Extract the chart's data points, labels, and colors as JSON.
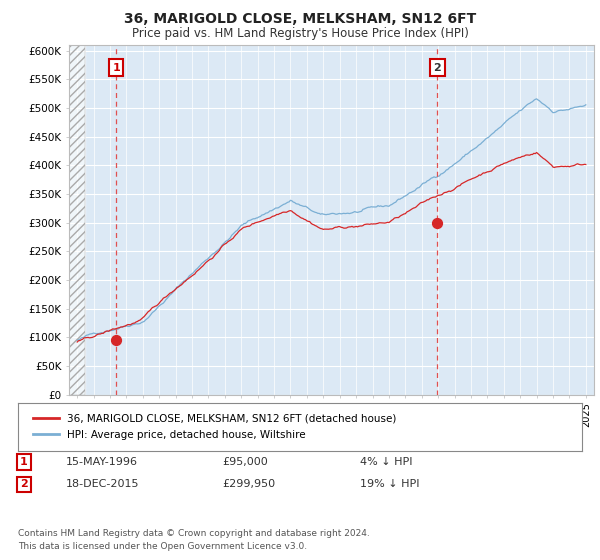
{
  "title": "36, MARIGOLD CLOSE, MELKSHAM, SN12 6FT",
  "subtitle": "Price paid vs. HM Land Registry's House Price Index (HPI)",
  "ylim": [
    0,
    600000
  ],
  "yticks": [
    0,
    50000,
    100000,
    150000,
    200000,
    250000,
    300000,
    350000,
    400000,
    450000,
    500000,
    550000,
    600000
  ],
  "ytick_labels": [
    "£0",
    "£50K",
    "£100K",
    "£150K",
    "£200K",
    "£250K",
    "£300K",
    "£350K",
    "£400K",
    "£450K",
    "£500K",
    "£550K",
    "£600K"
  ],
  "sale1_date": 1996.37,
  "sale1_price": 95000,
  "sale2_date": 2015.96,
  "sale2_price": 299950,
  "hpi_color": "#7bafd4",
  "price_color": "#d62728",
  "background_color": "#ffffff",
  "plot_bg_color": "#dce9f5",
  "legend_label_price": "36, MARIGOLD CLOSE, MELKSHAM, SN12 6FT (detached house)",
  "legend_label_hpi": "HPI: Average price, detached house, Wiltshire",
  "note1_date": "15-MAY-1996",
  "note1_price": "£95,000",
  "note1_pct": "4% ↓ HPI",
  "note2_date": "18-DEC-2015",
  "note2_price": "£299,950",
  "note2_pct": "19% ↓ HPI",
  "footer": "Contains HM Land Registry data © Crown copyright and database right 2024.\nThis data is licensed under the Open Government Licence v3.0."
}
